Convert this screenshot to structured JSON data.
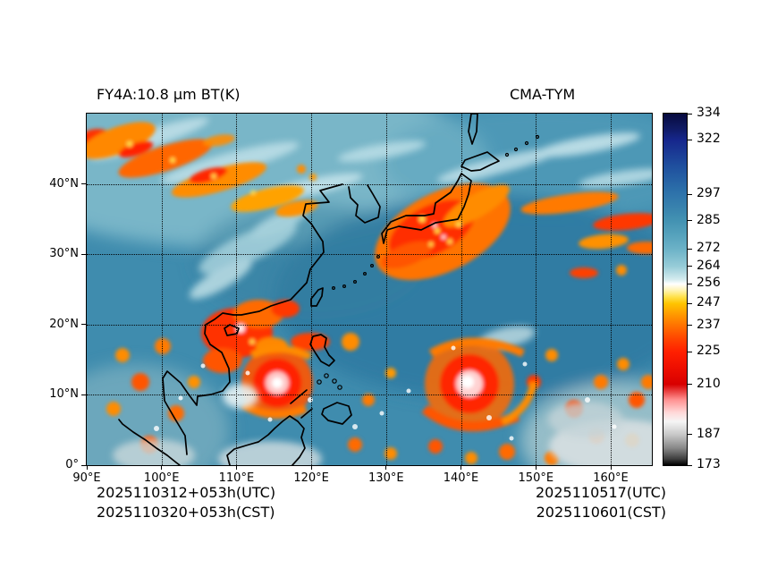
{
  "figure": {
    "title_left": "FY4A:10.8 μm BT(K)",
    "title_right": "CMA-TYM",
    "footer_left_line1": "2025110312+053h(UTC)",
    "footer_left_line2": "2025110320+053h(CST)",
    "footer_right_line1": "2025110517(UTC)",
    "footer_right_line2": "2025110601(CST)"
  },
  "colors": {
    "background": "#ffffff",
    "ocean_teal": "#3f8cae",
    "coastline": "#000000"
  },
  "chart_data": {
    "type": "heatmap",
    "title": "FY4A:10.8 μm BT(K)",
    "model": "CMA-TYM",
    "quantity": "10.8 μm brightness temperature",
    "unit": "K",
    "x_axis": {
      "label_unit": "°E",
      "min": 90,
      "max": 165.5,
      "ticks": [
        90,
        100,
        110,
        120,
        130,
        140,
        150,
        160
      ],
      "tick_labels": [
        "90°E",
        "100°E",
        "110°E",
        "120°E",
        "130°E",
        "140°E",
        "150°E",
        "160°E"
      ]
    },
    "y_axis": {
      "label_unit": "°N",
      "min": 0,
      "max": 50,
      "ticks": [
        0,
        10,
        20,
        30,
        40
      ],
      "tick_labels": [
        "0°",
        "10°N",
        "20°N",
        "30°N",
        "40°N"
      ]
    },
    "grid": {
      "style": "dotted",
      "x_lines": [
        100,
        110,
        120,
        130,
        140,
        150,
        160
      ],
      "y_lines": [
        10,
        20,
        30,
        40
      ]
    },
    "colorbar": {
      "min": 173,
      "max": 334,
      "tick_values": [
        334,
        322,
        297,
        285,
        272,
        264,
        256,
        247,
        237,
        225,
        210,
        187,
        173
      ],
      "tick_labels": [
        "334",
        "322",
        "297",
        "285",
        "272",
        "264",
        "256",
        "247",
        "237",
        "225",
        "210",
        "187",
        "173"
      ],
      "stops": [
        [
          334,
          "#070b3e"
        ],
        [
          327,
          "#101b66"
        ],
        [
          322,
          "#16268c"
        ],
        [
          310,
          "#1f4f9e"
        ],
        [
          300,
          "#2a6ca8"
        ],
        [
          297,
          "#2f74ab"
        ],
        [
          290,
          "#3a85ae"
        ],
        [
          285,
          "#4392b2"
        ],
        [
          278,
          "#57a3bd"
        ],
        [
          272,
          "#6cb2c7"
        ],
        [
          264,
          "#97ccd8"
        ],
        [
          258,
          "#d5ecef"
        ],
        [
          256,
          "#ffffff"
        ],
        [
          253,
          "#fff3b0"
        ],
        [
          250,
          "#ffe14a"
        ],
        [
          247,
          "#ffc400"
        ],
        [
          242,
          "#ff9900"
        ],
        [
          237,
          "#ff7200"
        ],
        [
          231,
          "#ff4500"
        ],
        [
          225,
          "#ff2000"
        ],
        [
          218,
          "#ef0f00"
        ],
        [
          210,
          "#d80000"
        ],
        [
          203,
          "#ff9090"
        ],
        [
          197,
          "#ffd9d9"
        ],
        [
          193,
          "#f5f5f5"
        ],
        [
          187,
          "#c8c8c8"
        ],
        [
          181,
          "#8a8a8a"
        ],
        [
          176,
          "#404040"
        ],
        [
          173,
          "#000000"
        ]
      ]
    },
    "features": [
      {
        "label": "tropical cyclone",
        "approx_lon": 115.5,
        "approx_lat": 11.5,
        "location": "South China Sea"
      },
      {
        "label": "tropical cyclone",
        "approx_lon": 141.5,
        "approx_lat": 12,
        "location": "Philippine Sea"
      },
      {
        "label": "frontal cloud band",
        "location": "over Japan and NW Pacific"
      },
      {
        "label": "jet-stream cirrus band",
        "location": "northern China"
      }
    ]
  }
}
